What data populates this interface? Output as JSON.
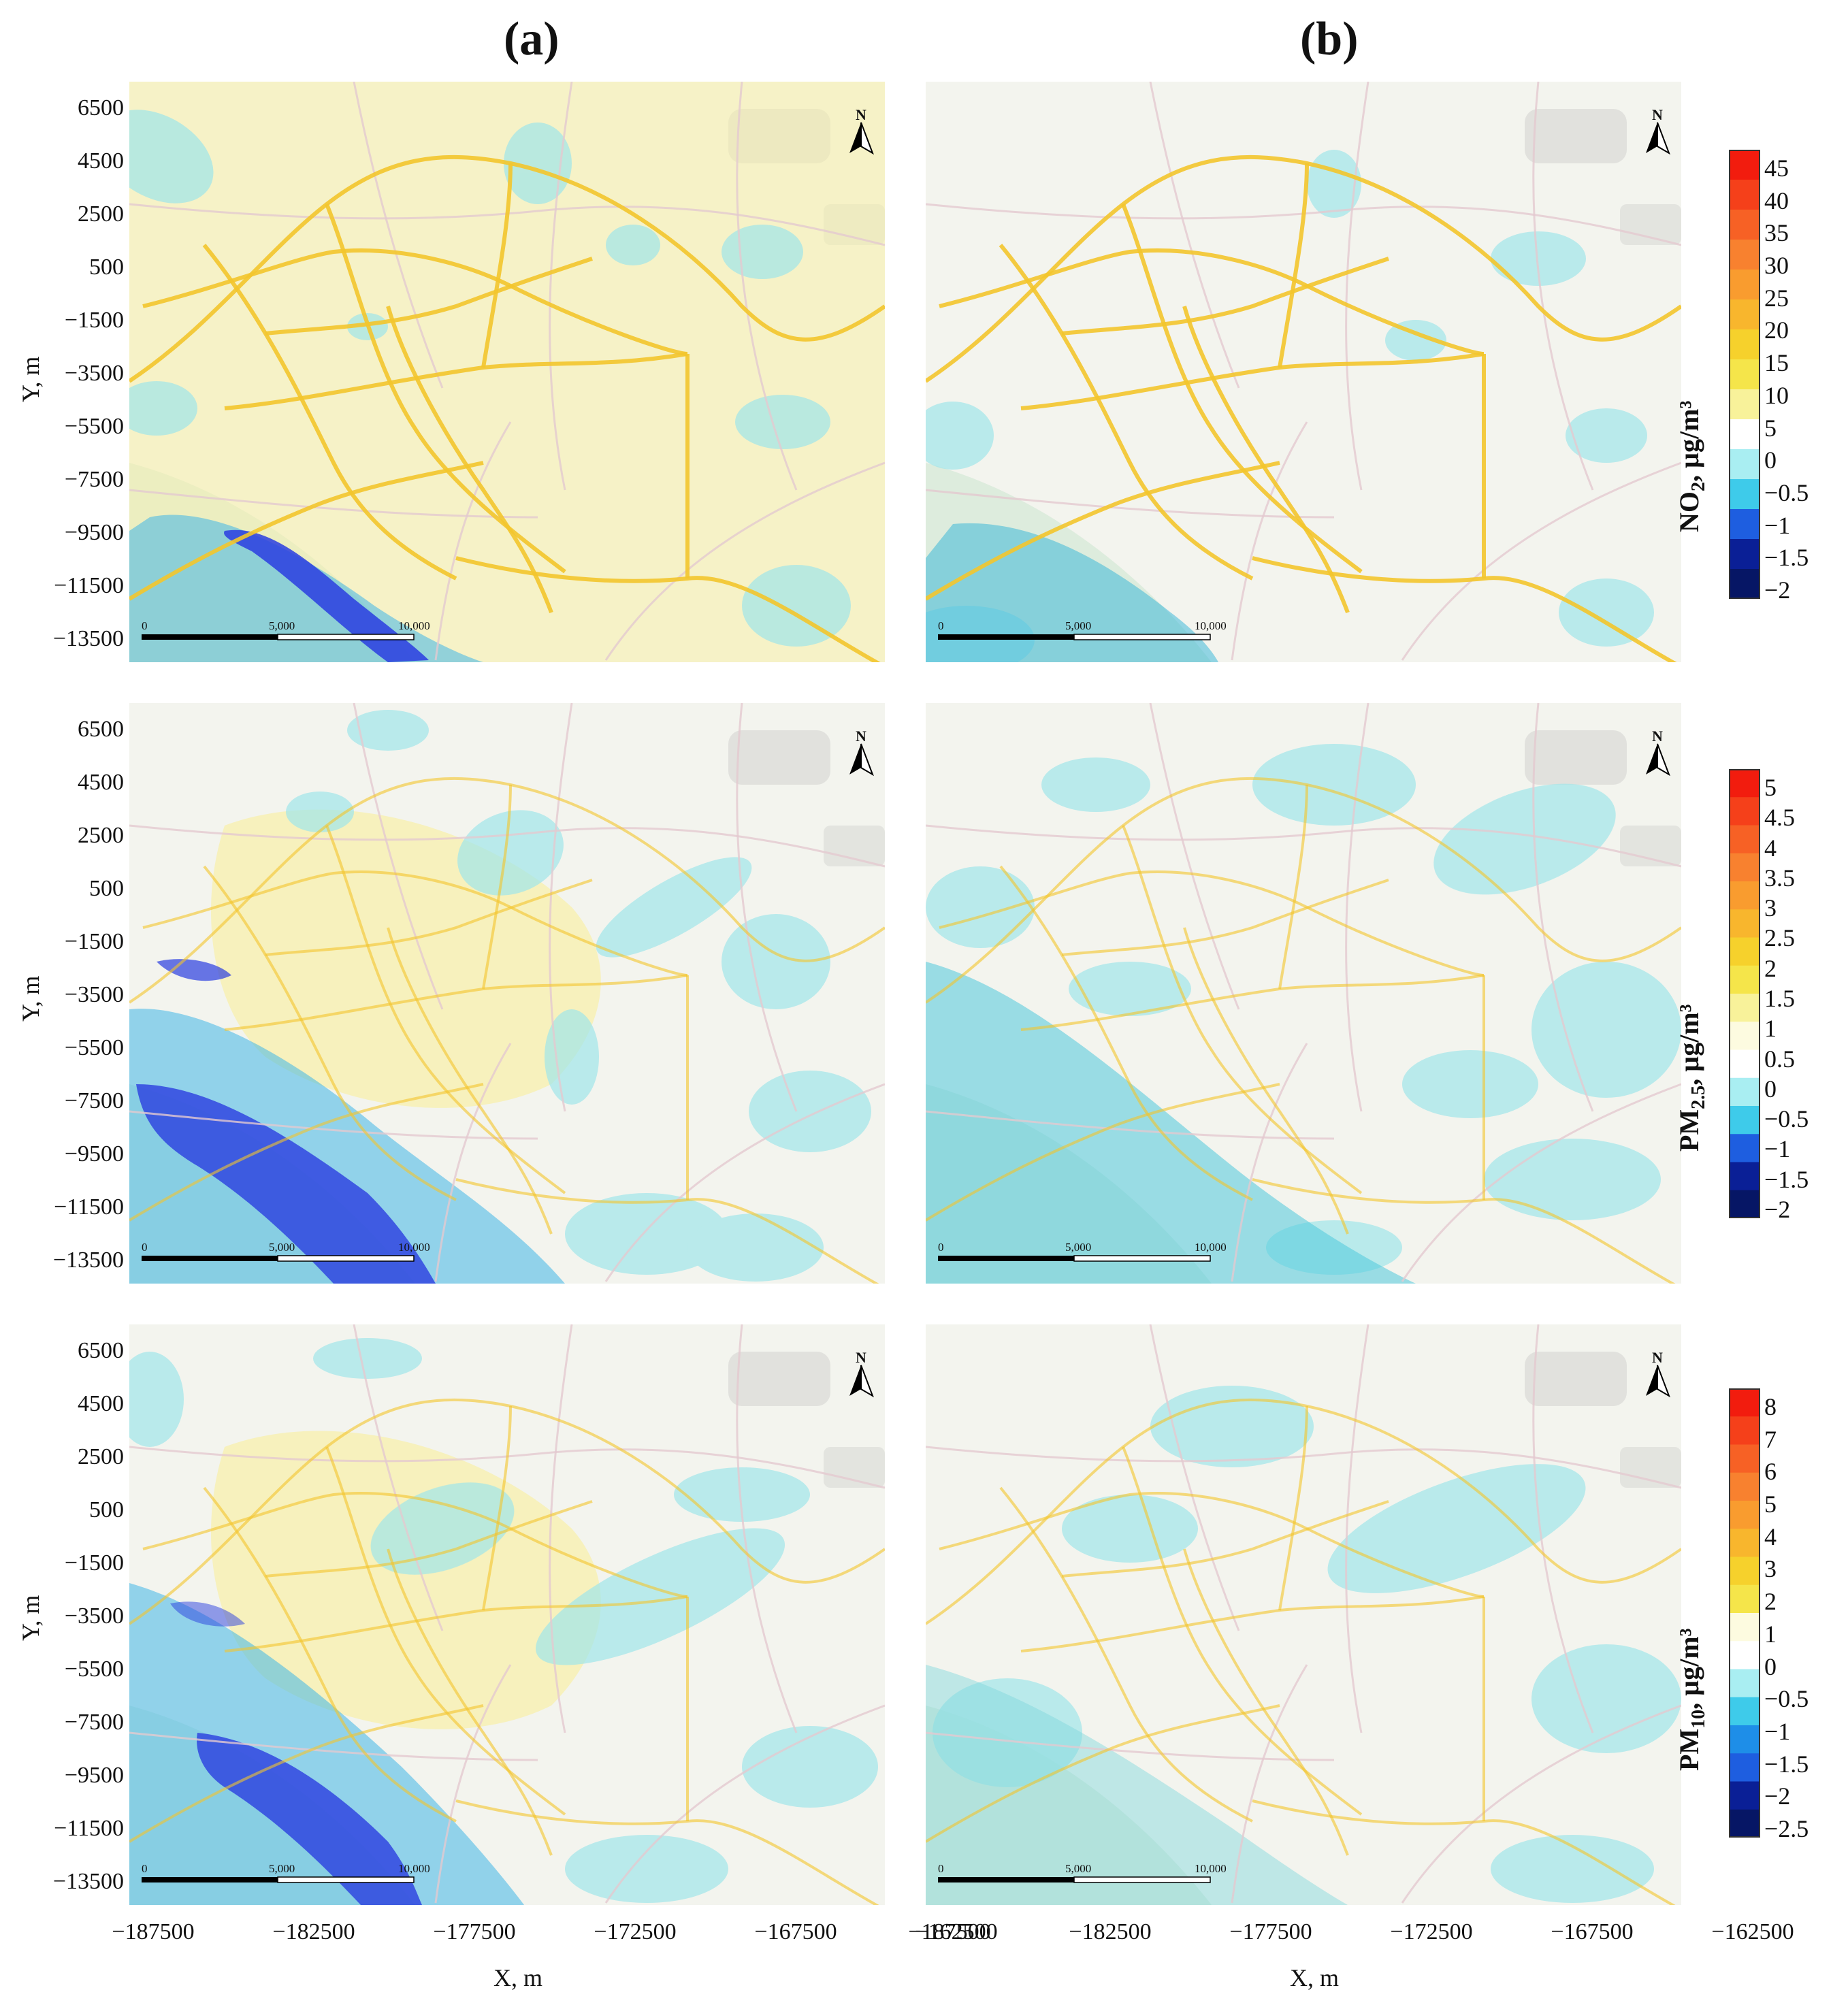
{
  "column_titles": [
    "(a)",
    "(b)"
  ],
  "y_ticks": [
    "6500",
    "4500",
    "2500",
    "500",
    "−1500",
    "−3500",
    "−5500",
    "−7500",
    "−9500",
    "−11500",
    "−13500"
  ],
  "x_ticks": [
    "−187500",
    "−182500",
    "−177500",
    "−172500",
    "−167500",
    "−162500"
  ],
  "y_axis_label": "Y, m",
  "x_axis_label": "X, m",
  "scale_bar": [
    "0",
    "5,000",
    "10,000"
  ],
  "north_label": "N",
  "colorbars": [
    {
      "title_main": "NO",
      "title_sub": "2",
      "title_unit": ", µg/m³",
      "ticks": [
        "45",
        "40",
        "35",
        "30",
        "25",
        "20",
        "15",
        "10",
        "5",
        "0",
        "−0.5",
        "−1",
        "−1.5",
        "−2"
      ],
      "colors": [
        "#f21c0e",
        "#f5401a",
        "#f76125",
        "#f8812f",
        "#f99c2f",
        "#f8b62d",
        "#f6d12c",
        "#f5e54a",
        "#f8f29a",
        "#ffffff",
        "#a9eef2",
        "#3ecbea",
        "#1e5ee0",
        "#0a1f96",
        "#061665"
      ]
    },
    {
      "title_main": "PM",
      "title_sub": "2.5",
      "title_unit": ", µg/m³",
      "ticks": [
        "5",
        "4.5",
        "4",
        "3.5",
        "3",
        "2.5",
        "2",
        "1.5",
        "1",
        "0.5",
        "0",
        "−0.5",
        "−1",
        "−1.5",
        "−2"
      ],
      "colors": [
        "#f21c0e",
        "#f5401a",
        "#f76125",
        "#f8812f",
        "#f99c2f",
        "#f8b62d",
        "#f6d12c",
        "#f5e54a",
        "#f8f29a",
        "#fdfbe0",
        "#ffffff",
        "#a9eef2",
        "#3ecbea",
        "#1e5ee0",
        "#0a1f96",
        "#061665"
      ]
    },
    {
      "title_main": "PM",
      "title_sub": "10",
      "title_unit": ", µg/m³",
      "ticks": [
        "8",
        "7",
        "6",
        "5",
        "4",
        "3",
        "2",
        "1",
        "0",
        "−0.5",
        "−1",
        "−1.5",
        "−2",
        "−2.5"
      ],
      "colors": [
        "#f21c0e",
        "#f5401a",
        "#f76125",
        "#f8812f",
        "#f99c2f",
        "#f8b62d",
        "#f6d12c",
        "#f5e54a",
        "#fdfbe0",
        "#ffffff",
        "#a9eef2",
        "#3ecbea",
        "#1e8ee8",
        "#1e5ee0",
        "#0a1f96",
        "#061665"
      ]
    }
  ],
  "colors": {
    "road": "#f3c52c",
    "pale_yellow": "#f8f0a8",
    "cyan": "#9fe6ea",
    "blue": "#2a3de0",
    "mid_blue": "#3fb6e8",
    "base": "#f3f4ee",
    "green": "#cfe6d2"
  }
}
